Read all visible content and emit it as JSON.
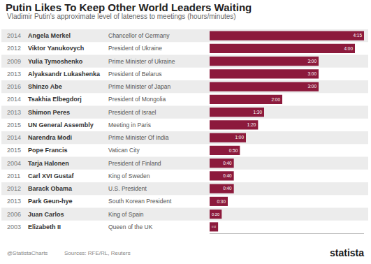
{
  "chart_data": {
    "type": "bar",
    "orientation": "horizontal",
    "title": "Putin Likes To Keep Other World Leaders Waiting",
    "subtitle": "Vladimir Putin's approximate level of lateness to meetings (hours/minutes)",
    "years": [
      "2014",
      "2012",
      "2009",
      "2013",
      "2016",
      "2014",
      "2013",
      "2015",
      "2014",
      "2015",
      "2004",
      "2011",
      "2012",
      "2013",
      "2006",
      "2003"
    ],
    "categories": [
      "Angela Merkel",
      "Viktor Yanukovych",
      "Yulia Tymoshenko",
      "Alyaksandr Lukashenka",
      "Shinzo Abe",
      "Tsakhia Elbegdorj",
      "Shimon Peres",
      "UN General Assembly",
      "Narendra Modi",
      "Pope Francis",
      "Tarja Halonen",
      "Carl XVI Gustaf",
      "Barack Obama",
      "Park Geun-hye",
      "Juan Carlos",
      "Elizabeth II"
    ],
    "roles": [
      "Chancellor of Germany",
      "President of Ukraine",
      "Prime Minister of Ukraine",
      "President of Belarus",
      "Prime Minister of Japan",
      "President of Mongolia",
      "President of Israel",
      "Meeting in Paris",
      "Prime Minister Of India",
      "Vatican City",
      "President of Finland",
      "King of Sweden",
      "U.S. President",
      "South Korean President",
      "King of Spain",
      "Queen of the UK"
    ],
    "values": [
      255,
      240,
      180,
      180,
      180,
      120,
      90,
      80,
      60,
      50,
      40,
      40,
      40,
      30,
      20,
      14
    ],
    "value_labels": [
      "4:15",
      "4:00",
      "3:00",
      "3:00",
      "3:00",
      "2:00",
      "1:30",
      "1:20",
      "1:00",
      "0:50",
      "0:40",
      "0:40",
      "0:40",
      "0:30",
      "0:20",
      "0:14"
    ],
    "data_labels": true,
    "color": "#8c1a3c",
    "xlim": [
      0,
      255
    ],
    "xticks": [],
    "tick_labels": false,
    "grid": false,
    "source": "Sources: RFE/RL, Reuters",
    "credit": "@StatistaCharts",
    "brand": "statista"
  }
}
